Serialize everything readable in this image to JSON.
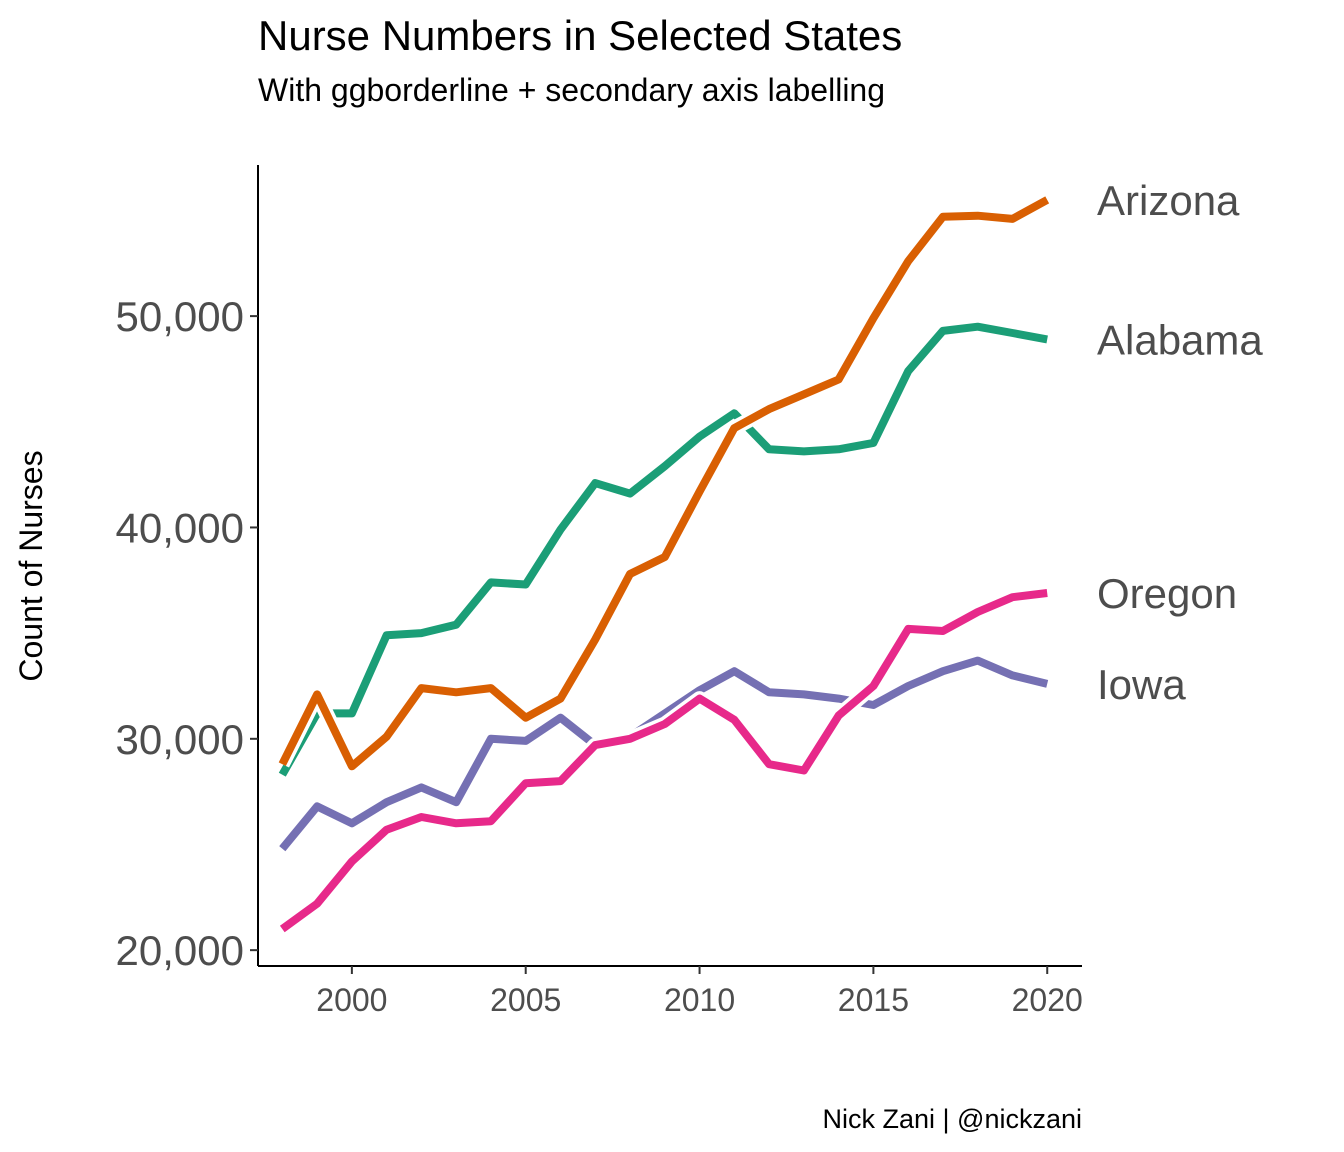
{
  "chart_data": {
    "type": "line",
    "title": "Nurse Numbers in Selected States",
    "subtitle": "With ggborderline + secondary axis labelling",
    "caption": "Nick Zani | @nickzani",
    "xlabel": "",
    "ylabel": "Count of Nurses",
    "xlim": [
      1997.3,
      2021.0
    ],
    "ylim": [
      19250,
      57150
    ],
    "x_ticks": [
      2000,
      2005,
      2010,
      2015,
      2020
    ],
    "x_tick_labels": [
      "2000",
      "2005",
      "2010",
      "2015",
      "2020"
    ],
    "y_ticks": [
      20000,
      30000,
      40000,
      50000
    ],
    "y_tick_labels": [
      "20,000",
      "30,000",
      "40,000",
      "50,000"
    ],
    "grid": false,
    "legend": "direct labels on right (secondary axis)",
    "x": [
      1998,
      1999,
      2000,
      2001,
      2002,
      2003,
      2004,
      2005,
      2006,
      2007,
      2008,
      2009,
      2010,
      2011,
      2012,
      2013,
      2014,
      2015,
      2016,
      2017,
      2018,
      2019,
      2020
    ],
    "series": [
      {
        "name": "Arizona",
        "color": "#D95F02",
        "values": [
          28800,
          32100,
          28700,
          30100,
          32400,
          32200,
          32400,
          31000,
          31900,
          34700,
          37800,
          38600,
          41700,
          44700,
          45600,
          46300,
          47000,
          49900,
          52600,
          54700,
          54750,
          54600,
          55500
        ]
      },
      {
        "name": "Alabama",
        "color": "#1B9E77",
        "values": [
          28300,
          31200,
          31200,
          34900,
          35000,
          35400,
          37400,
          37300,
          39900,
          42100,
          41600,
          42900,
          44300,
          45400,
          43700,
          43600,
          43700,
          44000,
          47400,
          49300,
          49500,
          49200,
          48900
        ]
      },
      {
        "name": "Oregon",
        "color": "#E7298A",
        "values": [
          21000,
          22200,
          24200,
          25700,
          26300,
          26000,
          26100,
          27900,
          28000,
          29700,
          30000,
          30700,
          31900,
          30900,
          28800,
          28500,
          31100,
          32500,
          35200,
          35100,
          36000,
          36700,
          36900
        ]
      },
      {
        "name": "Iowa",
        "color": "#7570B3",
        "values": [
          24800,
          26800,
          26000,
          27000,
          27700,
          27000,
          30000,
          29900,
          31000,
          29700,
          30100,
          31200,
          32300,
          33200,
          32200,
          32100,
          31900,
          31600,
          32500,
          33200,
          33700,
          33000,
          32600
        ]
      }
    ],
    "direct_labels": [
      {
        "text": "Arizona",
        "y": 55500
      },
      {
        "text": "Alabama",
        "y": 48900
      },
      {
        "text": "Oregon",
        "y": 36900
      },
      {
        "text": "Iowa",
        "y": 32600
      }
    ]
  }
}
